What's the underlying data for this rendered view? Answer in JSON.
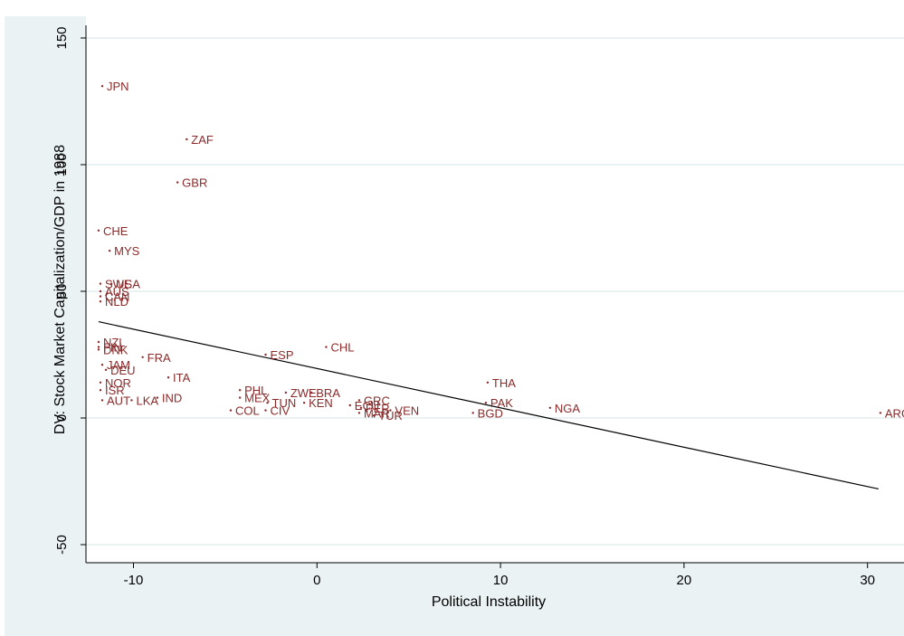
{
  "chart_data": {
    "type": "scatter",
    "title": "",
    "xlabel": "Political Instability",
    "ylabel": "DV: Stock Market Capitalization/GDP in 1988",
    "xlim": [
      -12.5,
      31
    ],
    "ylim": [
      -58,
      158
    ],
    "xticks": [
      -10,
      0,
      10,
      20,
      30
    ],
    "yticks": [
      -50,
      0,
      50,
      100,
      150
    ],
    "grid": "horizontal",
    "colors": {
      "plot_bg": "#ffffff",
      "outer_bg": "#eaf2f3",
      "grid": "#eaf2f3",
      "marker": "#8b2a2a",
      "fit_line": "#000000"
    },
    "points": [
      {
        "label": "JPN",
        "x": -11.7,
        "y": 131
      },
      {
        "label": "ZAF",
        "x": -7.1,
        "y": 110
      },
      {
        "label": "GBR",
        "x": -7.6,
        "y": 93
      },
      {
        "label": "CHE",
        "x": -11.9,
        "y": 74
      },
      {
        "label": "MYS",
        "x": -11.3,
        "y": 66
      },
      {
        "label": "USA",
        "x": -11.2,
        "y": 53
      },
      {
        "label": "SWE",
        "x": -11.8,
        "y": 53
      },
      {
        "label": "AUS",
        "x": -11.8,
        "y": 50
      },
      {
        "label": "CAN",
        "x": -11.8,
        "y": 48
      },
      {
        "label": "NLD",
        "x": -11.8,
        "y": 46
      },
      {
        "label": "NZL",
        "x": -11.9,
        "y": 30
      },
      {
        "label": "FIN",
        "x": -11.9,
        "y": 28
      },
      {
        "label": "DNK",
        "x": -11.9,
        "y": 27
      },
      {
        "label": "FRA",
        "x": -9.5,
        "y": 24
      },
      {
        "label": "JAM",
        "x": -11.7,
        "y": 21
      },
      {
        "label": "DEU",
        "x": -11.5,
        "y": 19
      },
      {
        "label": "ITA",
        "x": -8.1,
        "y": 16
      },
      {
        "label": "NOR",
        "x": -11.8,
        "y": 14
      },
      {
        "label": "ISR",
        "x": -11.8,
        "y": 11
      },
      {
        "label": "AUT",
        "x": -11.7,
        "y": 7
      },
      {
        "label": "LKA",
        "x": -10.1,
        "y": 7
      },
      {
        "label": "IND",
        "x": -8.7,
        "y": 8
      },
      {
        "label": "ESP",
        "x": -2.8,
        "y": 25
      },
      {
        "label": "CHL",
        "x": 0.5,
        "y": 28
      },
      {
        "label": "PHL",
        "x": -4.2,
        "y": 11
      },
      {
        "label": "MEX",
        "x": -4.2,
        "y": 8
      },
      {
        "label": "TUN",
        "x": -2.7,
        "y": 6
      },
      {
        "label": "CIV",
        "x": -2.8,
        "y": 3
      },
      {
        "label": "COL",
        "x": -4.7,
        "y": 3
      },
      {
        "label": "ZWE",
        "x": -1.7,
        "y": 10
      },
      {
        "label": "BRA",
        "x": -0.3,
        "y": 10
      },
      {
        "label": "KEN",
        "x": -0.7,
        "y": 6
      },
      {
        "label": "ECU",
        "x": 1.8,
        "y": 5
      },
      {
        "label": "GRC",
        "x": 2.3,
        "y": 7
      },
      {
        "label": "PER",
        "x": 2.4,
        "y": 4
      },
      {
        "label": "MAR",
        "x": 2.3,
        "y": 2
      },
      {
        "label": "TUR",
        "x": 3.1,
        "y": 1
      },
      {
        "label": "VEN",
        "x": 4.0,
        "y": 3
      },
      {
        "label": "THA",
        "x": 9.3,
        "y": 14
      },
      {
        "label": "PAK",
        "x": 9.2,
        "y": 6
      },
      {
        "label": "NGA",
        "x": 12.7,
        "y": 4
      },
      {
        "label": "BGD",
        "x": 8.5,
        "y": 2
      },
      {
        "label": "ARG",
        "x": 30.7,
        "y": 2
      }
    ],
    "fit_line": {
      "x": [
        -11.9,
        30.6
      ],
      "y": [
        38,
        -28
      ]
    }
  }
}
